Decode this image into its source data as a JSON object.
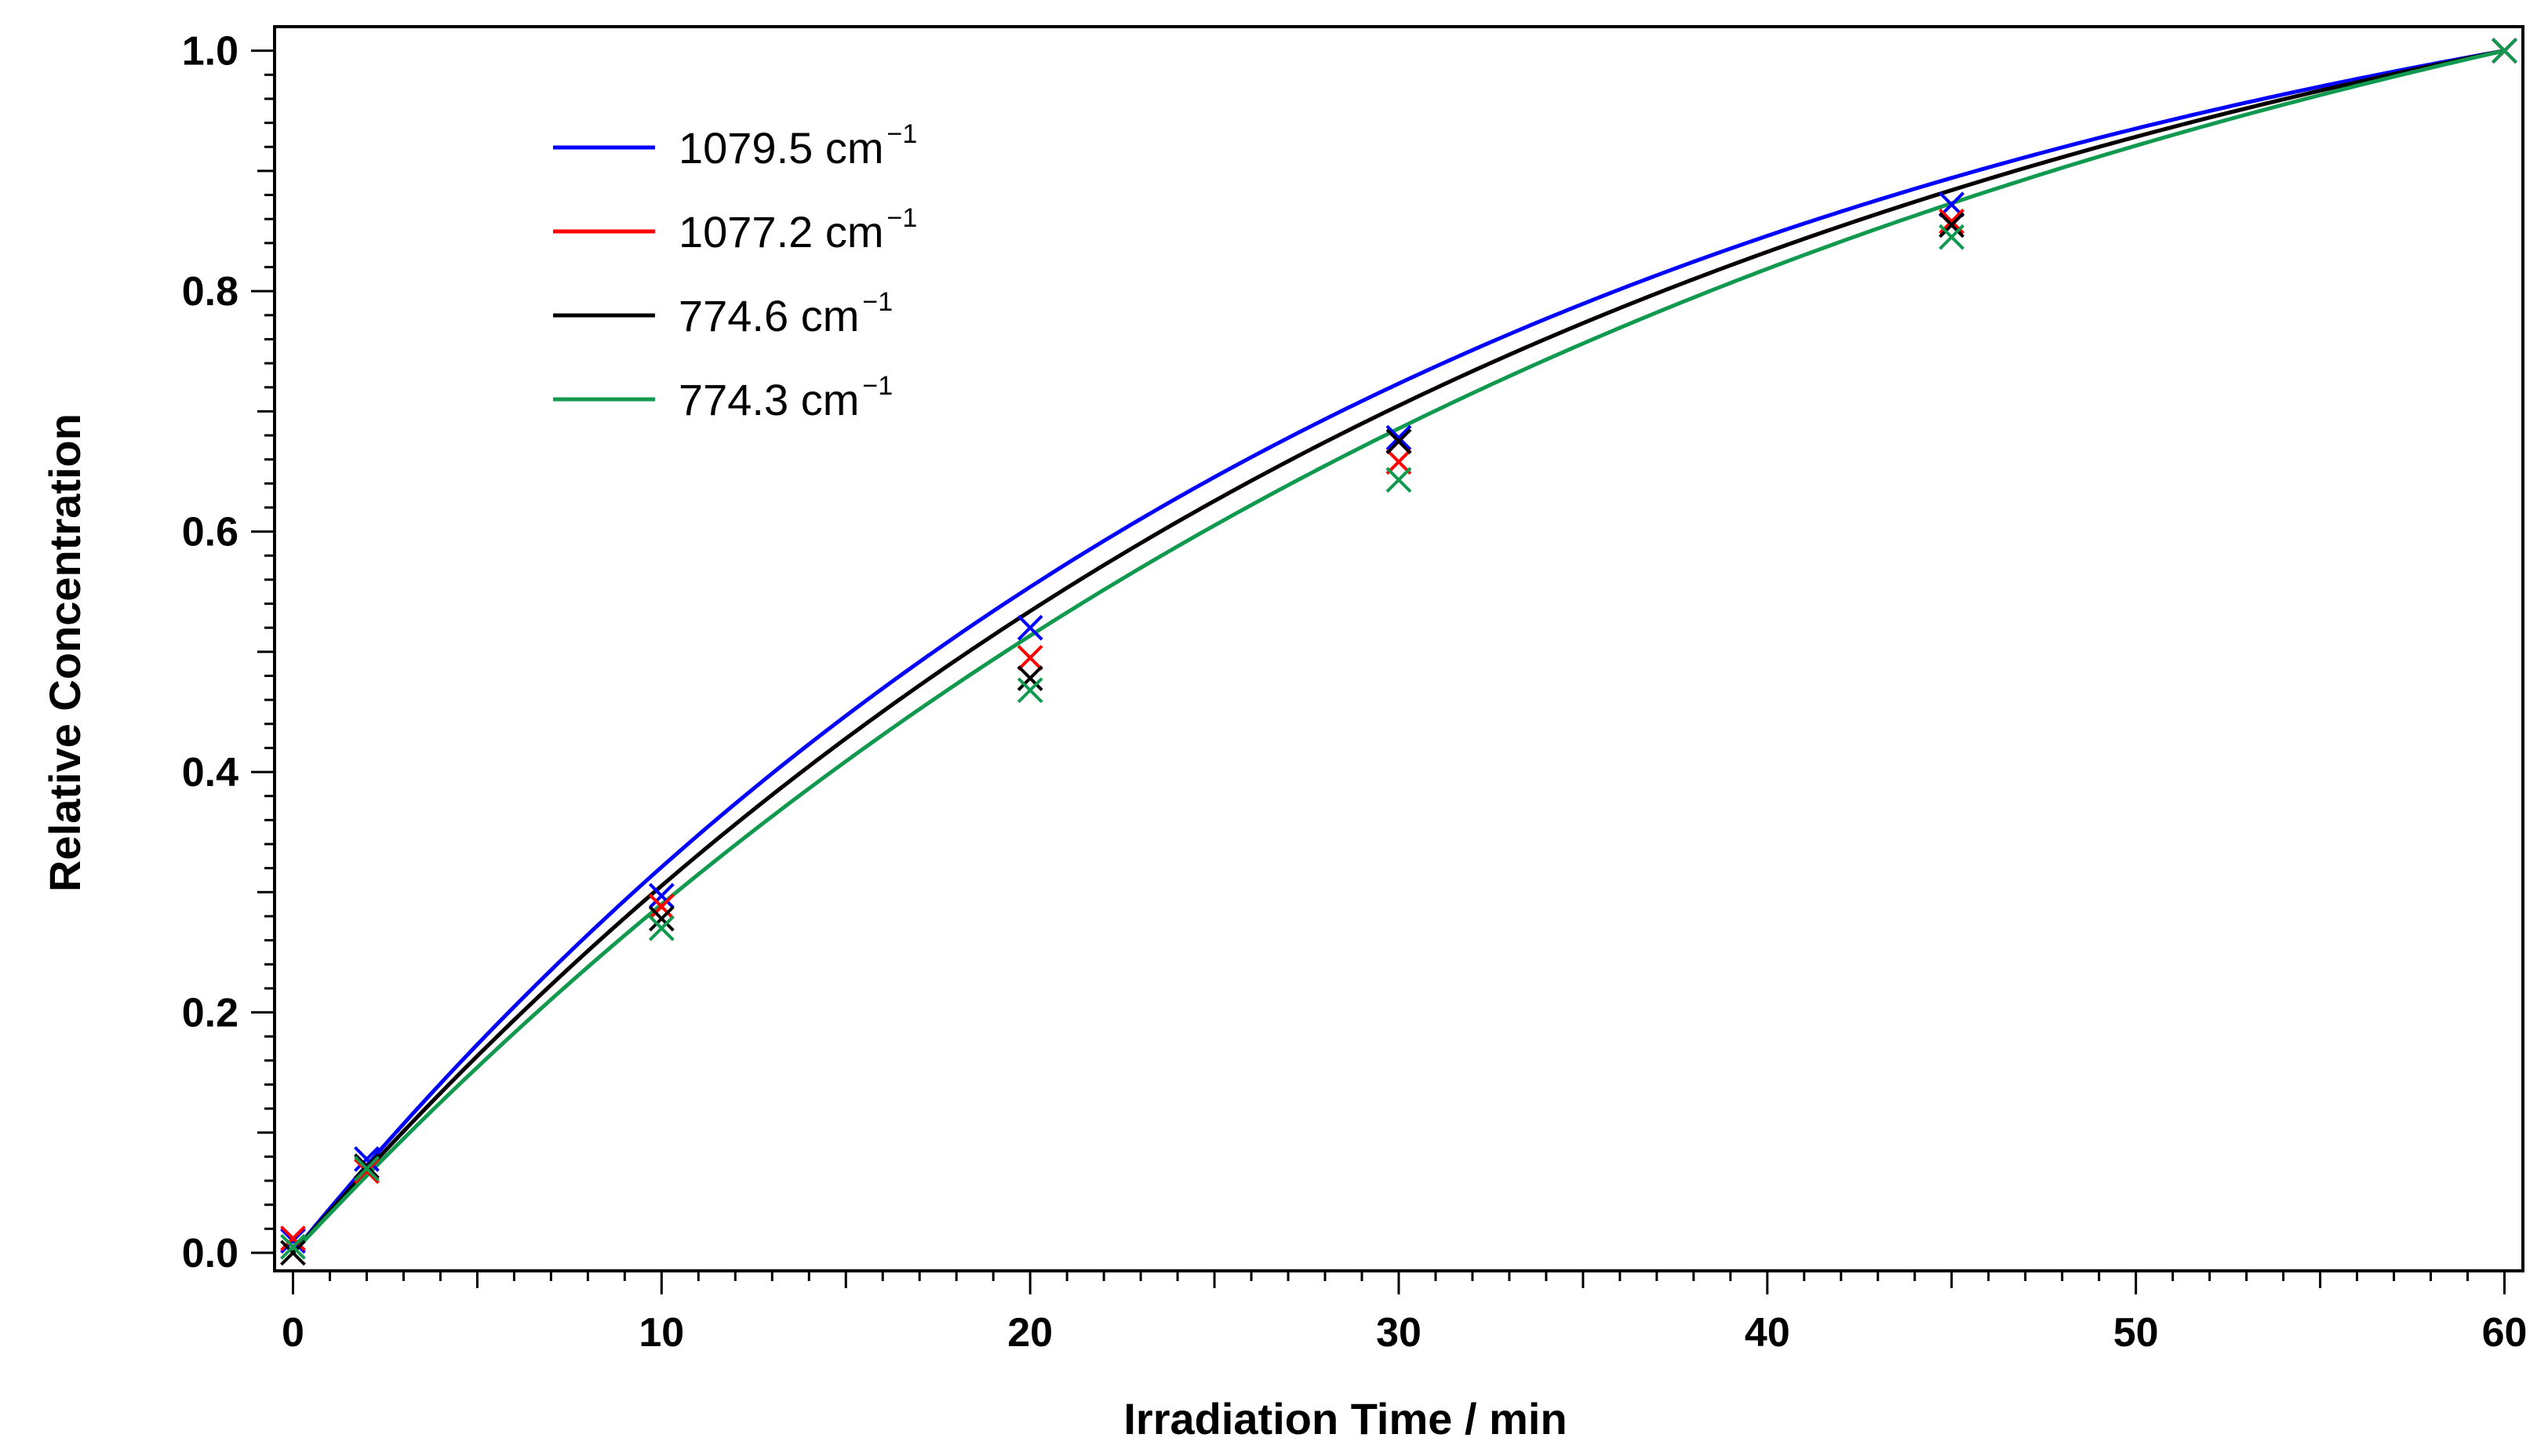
{
  "chart_data": {
    "type": "scatter",
    "title": "",
    "xlabel": "Irradiation Time / min",
    "ylabel": "Relative Concentration",
    "xlim": [
      -0.5,
      60.5
    ],
    "ylim": [
      -0.015,
      1.02
    ],
    "x_ticks": [
      0,
      10,
      20,
      30,
      40,
      50,
      60
    ],
    "x_tick_labels": [
      "0",
      "10",
      "20",
      "30",
      "40",
      "50",
      "60"
    ],
    "y_ticks": [
      0.0,
      0.2,
      0.4,
      0.6,
      0.8,
      1.0
    ],
    "y_tick_labels": [
      "0.0",
      "0.2",
      "0.4",
      "0.6",
      "0.8",
      "1.0"
    ],
    "grid": false,
    "legend_position": "top-left",
    "series": [
      {
        "name": "1079.5 cm",
        "superscript": "−1",
        "color": "#0000ff",
        "x": [
          0,
          2,
          10,
          20,
          30,
          45,
          60
        ],
        "y": [
          0.01,
          0.078,
          0.297,
          0.52,
          0.678,
          0.872,
          1.0
        ],
        "fit_k": 0.032
      },
      {
        "name": "1077.2 cm",
        "superscript": "−1",
        "color": "#ff0000",
        "x": [
          0,
          2,
          10,
          20,
          30,
          45,
          60
        ],
        "y": [
          0.012,
          0.068,
          0.288,
          0.495,
          0.658,
          0.858,
          1.0
        ],
        "fit_k": 0.029
      },
      {
        "name": "774.6 cm",
        "superscript": "−1",
        "color": "#000000",
        "x": [
          0,
          2,
          10,
          20,
          30,
          45,
          60
        ],
        "y": [
          0.0,
          0.072,
          0.278,
          0.478,
          0.675,
          0.855,
          1.0
        ],
        "fit_k": 0.029
      },
      {
        "name": "774.3 cm",
        "superscript": "−1",
        "color": "#119a4f",
        "x": [
          0,
          2,
          10,
          20,
          30,
          45,
          60
        ],
        "y": [
          0.005,
          0.07,
          0.27,
          0.468,
          0.643,
          0.845,
          1.0
        ],
        "fit_k": 0.026
      }
    ]
  }
}
